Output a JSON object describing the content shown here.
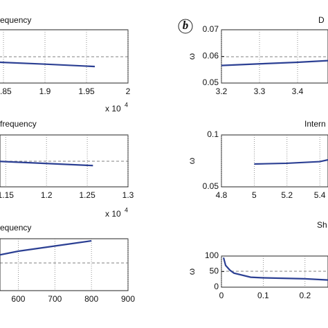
{
  "chart_data": [
    {
      "type": "line",
      "title": "equency",
      "xlim": [
        1.845,
        2
      ],
      "xticks": [
        1.85,
        1.9,
        1.95,
        2
      ],
      "ylim": [
        0,
        1
      ],
      "x_multiplier": {
        "base": "x 10",
        "exponent": "4"
      },
      "series": [
        {
          "color": "#2b3f93",
          "x": [
            1.845,
            1.9,
            1.96
          ],
          "values": [
            0.39,
            0.355,
            0.31
          ]
        }
      ]
    },
    {
      "type": "line",
      "title": "frequency",
      "xlim": [
        1.143,
        1.3
      ],
      "xticks": [
        1.15,
        1.2,
        1.25,
        1.3
      ],
      "ylim": [
        0,
        1
      ],
      "x_multiplier": {
        "base": "x 10",
        "exponent": "4"
      },
      "series": [
        {
          "color": "#2b3f93",
          "x": [
            1.143,
            1.2,
            1.257
          ],
          "values": [
            0.49,
            0.45,
            0.41
          ]
        }
      ]
    },
    {
      "type": "line",
      "title": "equency",
      "xlim": [
        550,
        900
      ],
      "xticks": [
        600,
        700,
        800,
        900
      ],
      "ylim": [
        0,
        1
      ],
      "series": [
        {
          "color": "#2b3f93",
          "x": [
            550,
            600,
            700,
            800
          ],
          "values": [
            0.69,
            0.76,
            0.86,
            0.96
          ]
        }
      ]
    },
    {
      "type": "line",
      "title": "D",
      "panel_label": "b",
      "y_label": "ω",
      "xlim": [
        3.2,
        3.48
      ],
      "xticks": [
        3.2,
        3.3,
        3.4
      ],
      "ylim": [
        0.05,
        0.07
      ],
      "yticks": [
        0.05,
        0.06,
        0.07
      ],
      "series": [
        {
          "color": "#2b3f93",
          "x": [
            3.2,
            3.3,
            3.4,
            3.48
          ],
          "values": [
            0.0566,
            0.0572,
            0.0578,
            0.0584
          ]
        }
      ]
    },
    {
      "type": "line",
      "title": "Intern",
      "y_label": "ω",
      "xlim": [
        4.8,
        5.45
      ],
      "xticks": [
        4.8,
        5,
        5.2,
        5.4
      ],
      "ylim": [
        0.05,
        0.1
      ],
      "yticks": [
        0.05,
        0.1
      ],
      "series": [
        {
          "color": "#2b3f93",
          "x": [
            5,
            5.2,
            5.4,
            5.45
          ],
          "values": [
            0.072,
            0.0727,
            0.0743,
            0.076
          ]
        }
      ]
    },
    {
      "type": "line",
      "title": "Sh",
      "y_label": "ω",
      "xlim": [
        0,
        0.255
      ],
      "xticks": [
        0,
        0.1,
        0.2
      ],
      "ylim": [
        0,
        100
      ],
      "yticks": [
        0,
        50,
        100
      ],
      "series": [
        {
          "color": "#2b3f93",
          "x": [
            0.005,
            0.01,
            0.02,
            0.03,
            0.07,
            0.1,
            0.2,
            0.255
          ],
          "values": [
            95,
            70,
            55,
            45,
            32,
            30,
            27,
            23
          ]
        }
      ]
    }
  ]
}
